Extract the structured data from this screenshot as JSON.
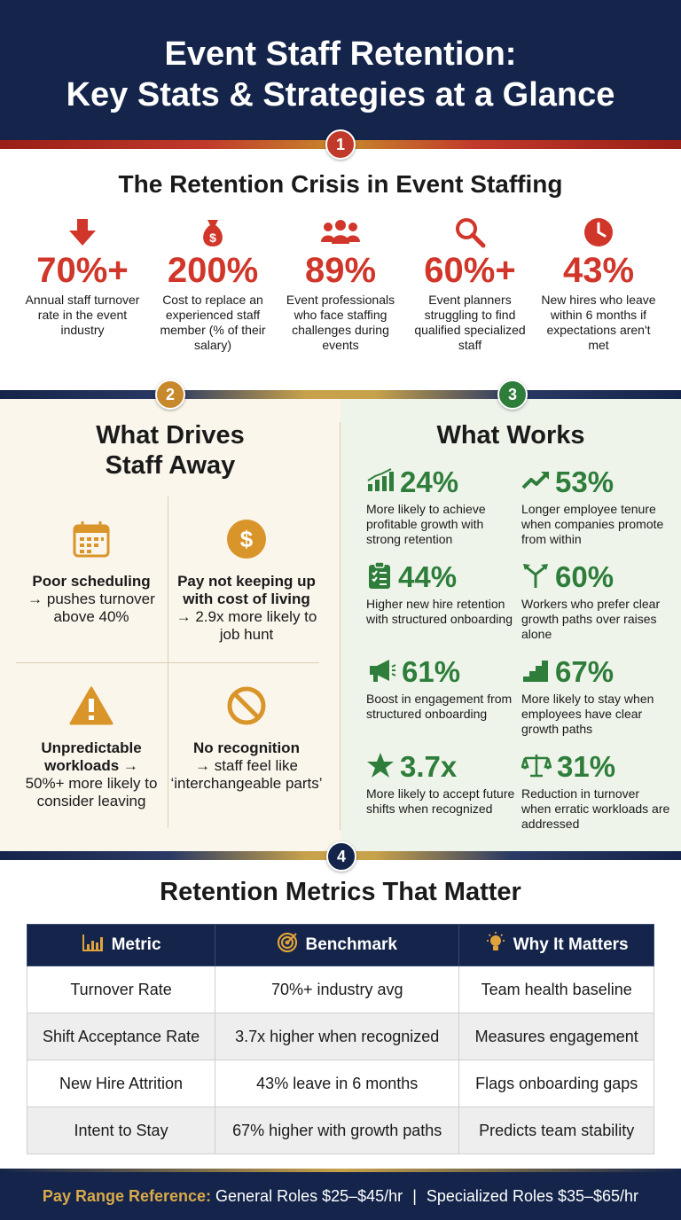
{
  "header": {
    "title_line1": "Event Staff Retention:",
    "title_line2": "Key Stats & Strategies at a Glance"
  },
  "badges": [
    "1",
    "2",
    "3",
    "4"
  ],
  "section1": {
    "title": "The Retention Crisis in Event Staffing",
    "stats": [
      {
        "icon": "arrow-down-icon",
        "value": "70%+",
        "desc": "Annual staff turnover rate in the event industry"
      },
      {
        "icon": "money-bag-icon",
        "value": "200%",
        "desc": "Cost to replace an experienced staff member (% of their salary)"
      },
      {
        "icon": "people-group-icon",
        "value": "89%",
        "desc": "Event professionals who face staffing challenges during events"
      },
      {
        "icon": "magnifier-icon",
        "value": "60%+",
        "desc": "Event planners struggling to find qualified specialized staff"
      },
      {
        "icon": "clock-icon",
        "value": "43%",
        "desc": "New hires who leave within 6 months if expectations aren't met"
      }
    ]
  },
  "section2": {
    "title_line1": "What Drives",
    "title_line2": "Staff Away",
    "drivers": [
      {
        "icon": "calendar-icon",
        "bold": "Poor scheduling",
        "rest": "→ pushes turnover above 40%"
      },
      {
        "icon": "dollar-icon",
        "bold": "Pay not keeping up with cost of living",
        "rest": "→ 2.9x more likely to job hunt"
      },
      {
        "icon": "warning-icon",
        "bold": "Unpredictable workloads →",
        "rest": "50%+ more likely to consider leaving"
      },
      {
        "icon": "prohibited-icon",
        "bold": "No recognition",
        "rest": "→ staff feel like ‘interchangeable parts’"
      }
    ]
  },
  "section3": {
    "title": "What Works",
    "items": [
      {
        "icon": "bar-chart-up-icon",
        "value": "24%",
        "desc": "More likely to achieve profitable growth with strong retention"
      },
      {
        "icon": "trend-up-icon",
        "value": "53%",
        "desc": "Longer employee tenure when companies promote from within"
      },
      {
        "icon": "clipboard-icon",
        "value": "44%",
        "desc": "Higher new hire retention with structured onboarding"
      },
      {
        "icon": "split-arrows-icon",
        "value": "60%",
        "desc": "Workers who prefer clear growth paths over raises alone"
      },
      {
        "icon": "megaphone-icon",
        "value": "61%",
        "desc": "Boost in engagement from structured onboarding"
      },
      {
        "icon": "stairs-icon",
        "value": "67%",
        "desc": "More likely to stay when employees have clear growth paths"
      },
      {
        "icon": "star-icon",
        "value": "3.7x",
        "desc": "More likely to accept future shifts when recognized"
      },
      {
        "icon": "scales-icon",
        "value": "31%",
        "desc": "Reduction in turnover when erratic workloads are addressed"
      }
    ]
  },
  "section4": {
    "title": "Retention Metrics That Matter",
    "headers": [
      {
        "icon": "chart-icon",
        "label": "Metric"
      },
      {
        "icon": "target-icon",
        "label": "Benchmark"
      },
      {
        "icon": "lightbulb-icon",
        "label": "Why It Matters"
      }
    ],
    "rows": [
      [
        "Turnover Rate",
        "70%+ industry avg",
        "Team health baseline"
      ],
      [
        "Shift Acceptance Rate",
        "3.7x higher when recognized",
        "Measures engagement"
      ],
      [
        "New Hire Attrition",
        "43% leave in 6 months",
        "Flags onboarding gaps"
      ],
      [
        "Intent to Stay",
        "67% higher with growth paths",
        "Predicts team stability"
      ]
    ]
  },
  "footer": {
    "label": "Pay Range Reference:",
    "general": "General Roles $25–$45/hr",
    "separator": "|",
    "specialized": "Specialized Roles $35–$65/hr"
  },
  "colors": {
    "navy": "#14244a",
    "red": "#d0362a",
    "gold": "#c8892c",
    "green": "#2e7d3a"
  }
}
